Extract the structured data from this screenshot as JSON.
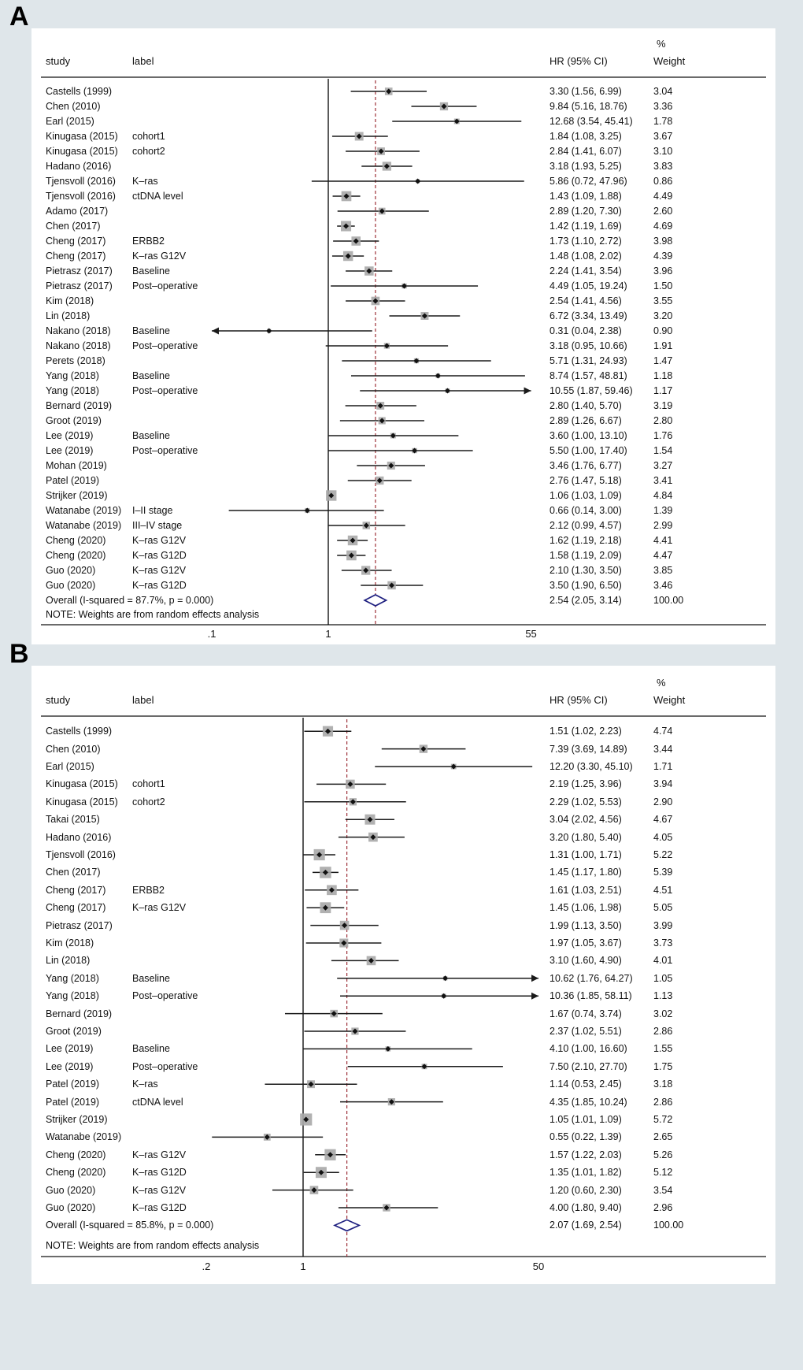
{
  "colors": {
    "background": "#dfe6ea",
    "panel": "#ffffff",
    "text": "#111111",
    "rule": "#3a3a3a",
    "null_line": "#000000",
    "overall_dashed": "#9e3038",
    "ci_line": "#1a1a1a",
    "square": "#a9a9a9",
    "marker": "#111111",
    "diamond": "#1f2080"
  },
  "chart_data": [
    {
      "type": "forest",
      "panel_label": "A",
      "header": {
        "study": "study",
        "label": "label",
        "hr_ci": "HR (95% CI)",
        "weight_pct": "%",
        "weight": "Weight"
      },
      "note": "NOTE: Weights are from random effects analysis",
      "axis": {
        "scale": "log",
        "ticks": [
          {
            "label": ".1",
            "value": 0.1
          },
          {
            "label": "1",
            "value": 1
          },
          {
            "label": "55",
            "value": 55
          }
        ],
        "null_line": 1,
        "overall_line": 2.54
      },
      "rows": [
        {
          "study": "Castells (1999)",
          "label": "",
          "hr": 3.3,
          "lo": 1.56,
          "hi": 6.99,
          "hr_text": "3.30 (1.56, 6.99)",
          "weight": "3.04"
        },
        {
          "study": "Chen (2010)",
          "label": "",
          "hr": 9.84,
          "lo": 5.16,
          "hi": 18.76,
          "hr_text": "9.84 (5.16, 18.76)",
          "weight": "3.36"
        },
        {
          "study": "Earl (2015)",
          "label": "",
          "hr": 12.68,
          "lo": 3.54,
          "hi": 45.41,
          "hr_text": "12.68 (3.54, 45.41)",
          "weight": "1.78"
        },
        {
          "study": "Kinugasa (2015)",
          "label": "cohort1",
          "hr": 1.84,
          "lo": 1.08,
          "hi": 3.25,
          "hr_text": "1.84 (1.08, 3.25)",
          "weight": "3.67"
        },
        {
          "study": "Kinugasa (2015)",
          "label": "cohort2",
          "hr": 2.84,
          "lo": 1.41,
          "hi": 6.07,
          "hr_text": "2.84 (1.41, 6.07)",
          "weight": "3.10"
        },
        {
          "study": "Hadano (2016)",
          "label": "",
          "hr": 3.18,
          "lo": 1.93,
          "hi": 5.25,
          "hr_text": "3.18 (1.93, 5.25)",
          "weight": "3.83"
        },
        {
          "study": "Tjensvoll (2016)",
          "label": "K–ras",
          "hr": 5.86,
          "lo": 0.72,
          "hi": 47.96,
          "hr_text": "5.86 (0.72, 47.96)",
          "weight": "0.86"
        },
        {
          "study": "Tjensvoll (2016)",
          "label": "ctDNA level",
          "hr": 1.43,
          "lo": 1.09,
          "hi": 1.88,
          "hr_text": "1.43 (1.09, 1.88)",
          "weight": "4.49"
        },
        {
          "study": "Adamo (2017)",
          "label": "",
          "hr": 2.89,
          "lo": 1.2,
          "hi": 7.3,
          "hr_text": "2.89 (1.20, 7.30)",
          "weight": "2.60"
        },
        {
          "study": "Chen (2017)",
          "label": "",
          "hr": 1.42,
          "lo": 1.19,
          "hi": 1.69,
          "hr_text": "1.42 (1.19, 1.69)",
          "weight": "4.69"
        },
        {
          "study": "Cheng (2017)",
          "label": "ERBB2",
          "hr": 1.73,
          "lo": 1.1,
          "hi": 2.72,
          "hr_text": "1.73 (1.10, 2.72)",
          "weight": "3.98"
        },
        {
          "study": "Cheng (2017)",
          "label": "K–ras G12V",
          "hr": 1.48,
          "lo": 1.08,
          "hi": 2.02,
          "hr_text": "1.48 (1.08, 2.02)",
          "weight": "4.39"
        },
        {
          "study": "Pietrasz (2017)",
          "label": "Baseline",
          "hr": 2.24,
          "lo": 1.41,
          "hi": 3.54,
          "hr_text": "2.24 (1.41, 3.54)",
          "weight": "3.96"
        },
        {
          "study": "Pietrasz (2017)",
          "label": "Post–operative",
          "hr": 4.49,
          "lo": 1.05,
          "hi": 19.24,
          "hr_text": "4.49 (1.05, 19.24)",
          "weight": "1.50"
        },
        {
          "study": "Kim (2018)",
          "label": "",
          "hr": 2.54,
          "lo": 1.41,
          "hi": 4.56,
          "hr_text": "2.54 (1.41, 4.56)",
          "weight": "3.55"
        },
        {
          "study": "Lin (2018)",
          "label": "",
          "hr": 6.72,
          "lo": 3.34,
          "hi": 13.49,
          "hr_text": "6.72 (3.34, 13.49)",
          "weight": "3.20"
        },
        {
          "study": "Nakano (2018)",
          "label": "Baseline",
          "hr": 0.31,
          "lo": 0.04,
          "hi": 2.38,
          "hr_text": "0.31 (0.04, 2.38)",
          "weight": "0.90"
        },
        {
          "study": "Nakano (2018)",
          "label": "Post–operative",
          "hr": 3.18,
          "lo": 0.95,
          "hi": 10.66,
          "hr_text": "3.18 (0.95, 10.66)",
          "weight": "1.91"
        },
        {
          "study": "Perets (2018)",
          "label": "",
          "hr": 5.71,
          "lo": 1.31,
          "hi": 24.93,
          "hr_text": "5.71 (1.31, 24.93)",
          "weight": "1.47"
        },
        {
          "study": "Yang (2018)",
          "label": "Baseline",
          "hr": 8.74,
          "lo": 1.57,
          "hi": 48.81,
          "hr_text": "8.74 (1.57, 48.81)",
          "weight": "1.18"
        },
        {
          "study": "Yang (2018)",
          "label": "Post–operative",
          "hr": 10.55,
          "lo": 1.87,
          "hi": 59.46,
          "hr_text": "10.55 (1.87, 59.46)",
          "weight": "1.17"
        },
        {
          "study": "Bernard (2019)",
          "label": "",
          "hr": 2.8,
          "lo": 1.4,
          "hi": 5.7,
          "hr_text": "2.80 (1.40, 5.70)",
          "weight": "3.19"
        },
        {
          "study": "Groot (2019)",
          "label": "",
          "hr": 2.89,
          "lo": 1.26,
          "hi": 6.67,
          "hr_text": "2.89 (1.26, 6.67)",
          "weight": "2.80"
        },
        {
          "study": "Lee (2019)",
          "label": "Baseline",
          "hr": 3.6,
          "lo": 1.0,
          "hi": 13.1,
          "hr_text": "3.60 (1.00, 13.10)",
          "weight": "1.76"
        },
        {
          "study": "Lee (2019)",
          "label": "Post–operative",
          "hr": 5.5,
          "lo": 1.0,
          "hi": 17.4,
          "hr_text": "5.50 (1.00, 17.40)",
          "weight": "1.54"
        },
        {
          "study": "Mohan (2019)",
          "label": "",
          "hr": 3.46,
          "lo": 1.76,
          "hi": 6.77,
          "hr_text": "3.46 (1.76, 6.77)",
          "weight": "3.27"
        },
        {
          "study": "Patel (2019)",
          "label": "",
          "hr": 2.76,
          "lo": 1.47,
          "hi": 5.18,
          "hr_text": "2.76 (1.47, 5.18)",
          "weight": "3.41"
        },
        {
          "study": "Strijker (2019)",
          "label": "",
          "hr": 1.06,
          "lo": 1.03,
          "hi": 1.09,
          "hr_text": "1.06 (1.03, 1.09)",
          "weight": "4.84"
        },
        {
          "study": "Watanabe (2019)",
          "label": "I–II stage",
          "hr": 0.66,
          "lo": 0.14,
          "hi": 3.0,
          "hr_text": "0.66 (0.14, 3.00)",
          "weight": "1.39"
        },
        {
          "study": "Watanabe (2019)",
          "label": "III–IV stage",
          "hr": 2.12,
          "lo": 0.99,
          "hi": 4.57,
          "hr_text": "2.12 (0.99, 4.57)",
          "weight": "2.99"
        },
        {
          "study": "Cheng (2020)",
          "label": "K–ras G12V",
          "hr": 1.62,
          "lo": 1.19,
          "hi": 2.18,
          "hr_text": "1.62 (1.19, 2.18)",
          "weight": "4.41"
        },
        {
          "study": "Cheng (2020)",
          "label": "K–ras G12D",
          "hr": 1.58,
          "lo": 1.19,
          "hi": 2.09,
          "hr_text": "1.58 (1.19, 2.09)",
          "weight": "4.47"
        },
        {
          "study": "Guo (2020)",
          "label": "K–ras G12V",
          "hr": 2.1,
          "lo": 1.3,
          "hi": 3.5,
          "hr_text": "2.10 (1.30, 3.50)",
          "weight": "3.85"
        },
        {
          "study": "Guo (2020)",
          "label": "K–ras G12D",
          "hr": 3.5,
          "lo": 1.9,
          "hi": 6.5,
          "hr_text": "3.50 (1.90, 6.50)",
          "weight": "3.46"
        },
        {
          "study": "Overall  (I-squared = 87.7%, p = 0.000)",
          "label": "",
          "hr": 2.54,
          "lo": 2.05,
          "hi": 3.14,
          "hr_text": "2.54 (2.05, 3.14)",
          "weight": "100.00",
          "overall": true
        }
      ]
    },
    {
      "type": "forest",
      "panel_label": "B",
      "header": {
        "study": "study",
        "label": "label",
        "hr_ci": "HR (95% CI)",
        "weight_pct": "%",
        "weight": "Weight"
      },
      "note": "NOTE: Weights are from random effects analysis",
      "axis": {
        "scale": "log",
        "ticks": [
          {
            "label": ".2",
            "value": 0.2
          },
          {
            "label": "1",
            "value": 1
          },
          {
            "label": "50",
            "value": 50
          }
        ],
        "null_line": 1,
        "overall_line": 2.07
      },
      "rows": [
        {
          "study": "Castells (1999)",
          "label": "",
          "hr": 1.51,
          "lo": 1.02,
          "hi": 2.23,
          "hr_text": "1.51 (1.02, 2.23)",
          "weight": "4.74"
        },
        {
          "study": "Chen (2010)",
          "label": "",
          "hr": 7.39,
          "lo": 3.69,
          "hi": 14.89,
          "hr_text": "7.39 (3.69, 14.89)",
          "weight": "3.44"
        },
        {
          "study": "Earl (2015)",
          "label": "",
          "hr": 12.2,
          "lo": 3.3,
          "hi": 45.1,
          "hr_text": "12.20 (3.30, 45.10)",
          "weight": "1.71"
        },
        {
          "study": "Kinugasa (2015)",
          "label": "cohort1",
          "hr": 2.19,
          "lo": 1.25,
          "hi": 3.96,
          "hr_text": "2.19 (1.25, 3.96)",
          "weight": "3.94"
        },
        {
          "study": "Kinugasa (2015)",
          "label": "cohort2",
          "hr": 2.29,
          "lo": 1.02,
          "hi": 5.53,
          "hr_text": "2.29 (1.02, 5.53)",
          "weight": "2.90"
        },
        {
          "study": "Takai (2015)",
          "label": "",
          "hr": 3.04,
          "lo": 2.02,
          "hi": 4.56,
          "hr_text": "3.04 (2.02, 4.56)",
          "weight": "4.67"
        },
        {
          "study": "Hadano (2016)",
          "label": "",
          "hr": 3.2,
          "lo": 1.8,
          "hi": 5.4,
          "hr_text": "3.20 (1.80, 5.40)",
          "weight": "4.05"
        },
        {
          "study": "Tjensvoll (2016)",
          "label": "",
          "hr": 1.31,
          "lo": 1.0,
          "hi": 1.71,
          "hr_text": "1.31 (1.00, 1.71)",
          "weight": "5.22"
        },
        {
          "study": "Chen (2017)",
          "label": "",
          "hr": 1.45,
          "lo": 1.17,
          "hi": 1.8,
          "hr_text": "1.45 (1.17, 1.80)",
          "weight": "5.39"
        },
        {
          "study": "Cheng (2017)",
          "label": "ERBB2",
          "hr": 1.61,
          "lo": 1.03,
          "hi": 2.51,
          "hr_text": "1.61 (1.03, 2.51)",
          "weight": "4.51"
        },
        {
          "study": "Cheng (2017)",
          "label": "K–ras G12V",
          "hr": 1.45,
          "lo": 1.06,
          "hi": 1.98,
          "hr_text": "1.45 (1.06, 1.98)",
          "weight": "5.05"
        },
        {
          "study": "Pietrasz (2017)",
          "label": "",
          "hr": 1.99,
          "lo": 1.13,
          "hi": 3.5,
          "hr_text": "1.99 (1.13, 3.50)",
          "weight": "3.99"
        },
        {
          "study": "Kim (2018)",
          "label": "",
          "hr": 1.97,
          "lo": 1.05,
          "hi": 3.67,
          "hr_text": "1.97 (1.05, 3.67)",
          "weight": "3.73"
        },
        {
          "study": "Lin (2018)",
          "label": "",
          "hr": 3.1,
          "lo": 1.6,
          "hi": 4.9,
          "hr_text": "3.10 (1.60, 4.90)",
          "weight": "4.01"
        },
        {
          "study": "Yang (2018)",
          "label": "Baseline",
          "hr": 10.62,
          "lo": 1.76,
          "hi": 64.27,
          "hr_text": "10.62 (1.76, 64.27)",
          "weight": "1.05"
        },
        {
          "study": "Yang (2018)",
          "label": "Post–operative",
          "hr": 10.36,
          "lo": 1.85,
          "hi": 58.11,
          "hr_text": "10.36 (1.85, 58.11)",
          "weight": "1.13"
        },
        {
          "study": "Bernard (2019)",
          "label": "",
          "hr": 1.67,
          "lo": 0.74,
          "hi": 3.74,
          "hr_text": "1.67 (0.74, 3.74)",
          "weight": "3.02"
        },
        {
          "study": "Groot (2019)",
          "label": "",
          "hr": 2.37,
          "lo": 1.02,
          "hi": 5.51,
          "hr_text": "2.37 (1.02, 5.51)",
          "weight": "2.86"
        },
        {
          "study": "Lee (2019)",
          "label": "Baseline",
          "hr": 4.1,
          "lo": 1.0,
          "hi": 16.6,
          "hr_text": "4.10 (1.00, 16.60)",
          "weight": "1.55"
        },
        {
          "study": "Lee (2019)",
          "label": "Post–operative",
          "hr": 7.5,
          "lo": 2.1,
          "hi": 27.7,
          "hr_text": "7.50 (2.10, 27.70)",
          "weight": "1.75"
        },
        {
          "study": "Patel (2019)",
          "label": "K–ras",
          "hr": 1.14,
          "lo": 0.53,
          "hi": 2.45,
          "hr_text": "1.14 (0.53, 2.45)",
          "weight": "3.18"
        },
        {
          "study": "Patel (2019)",
          "label": "ctDNA level",
          "hr": 4.35,
          "lo": 1.85,
          "hi": 10.24,
          "hr_text": "4.35 (1.85, 10.24)",
          "weight": "2.86"
        },
        {
          "study": "Strijker (2019)",
          "label": "",
          "hr": 1.05,
          "lo": 1.01,
          "hi": 1.09,
          "hr_text": "1.05 (1.01, 1.09)",
          "weight": "5.72"
        },
        {
          "study": "Watanabe (2019)",
          "label": "",
          "hr": 0.55,
          "lo": 0.22,
          "hi": 1.39,
          "hr_text": "0.55 (0.22, 1.39)",
          "weight": "2.65"
        },
        {
          "study": "Cheng (2020)",
          "label": "K–ras G12V",
          "hr": 1.57,
          "lo": 1.22,
          "hi": 2.03,
          "hr_text": "1.57 (1.22, 2.03)",
          "weight": "5.26"
        },
        {
          "study": "Cheng (2020)",
          "label": "K–ras G12D",
          "hr": 1.35,
          "lo": 1.01,
          "hi": 1.82,
          "hr_text": "1.35 (1.01, 1.82)",
          "weight": "5.12"
        },
        {
          "study": "Guo (2020)",
          "label": "K–ras G12V",
          "hr": 1.2,
          "lo": 0.6,
          "hi": 2.3,
          "hr_text": "1.20 (0.60, 2.30)",
          "weight": "3.54"
        },
        {
          "study": "Guo (2020)",
          "label": "K–ras G12D",
          "hr": 4.0,
          "lo": 1.8,
          "hi": 9.4,
          "hr_text": "4.00 (1.80, 9.40)",
          "weight": "2.96"
        },
        {
          "study": "Overall  (I-squared = 85.8%, p = 0.000)",
          "label": "",
          "hr": 2.07,
          "lo": 1.69,
          "hi": 2.54,
          "hr_text": "2.07 (1.69, 2.54)",
          "weight": "100.00",
          "overall": true
        }
      ]
    }
  ]
}
